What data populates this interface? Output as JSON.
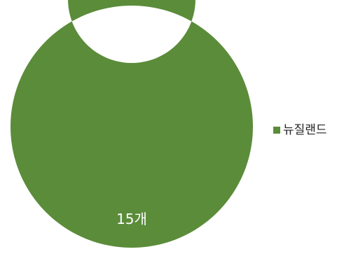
{
  "chart_data": {
    "type": "pie",
    "variant": "donut",
    "categories": [
      "뉴질랜드"
    ],
    "values": [
      15
    ],
    "data_labels": [
      "15개"
    ],
    "colors": [
      "#5b8c3a"
    ],
    "legend_position": "right"
  }
}
